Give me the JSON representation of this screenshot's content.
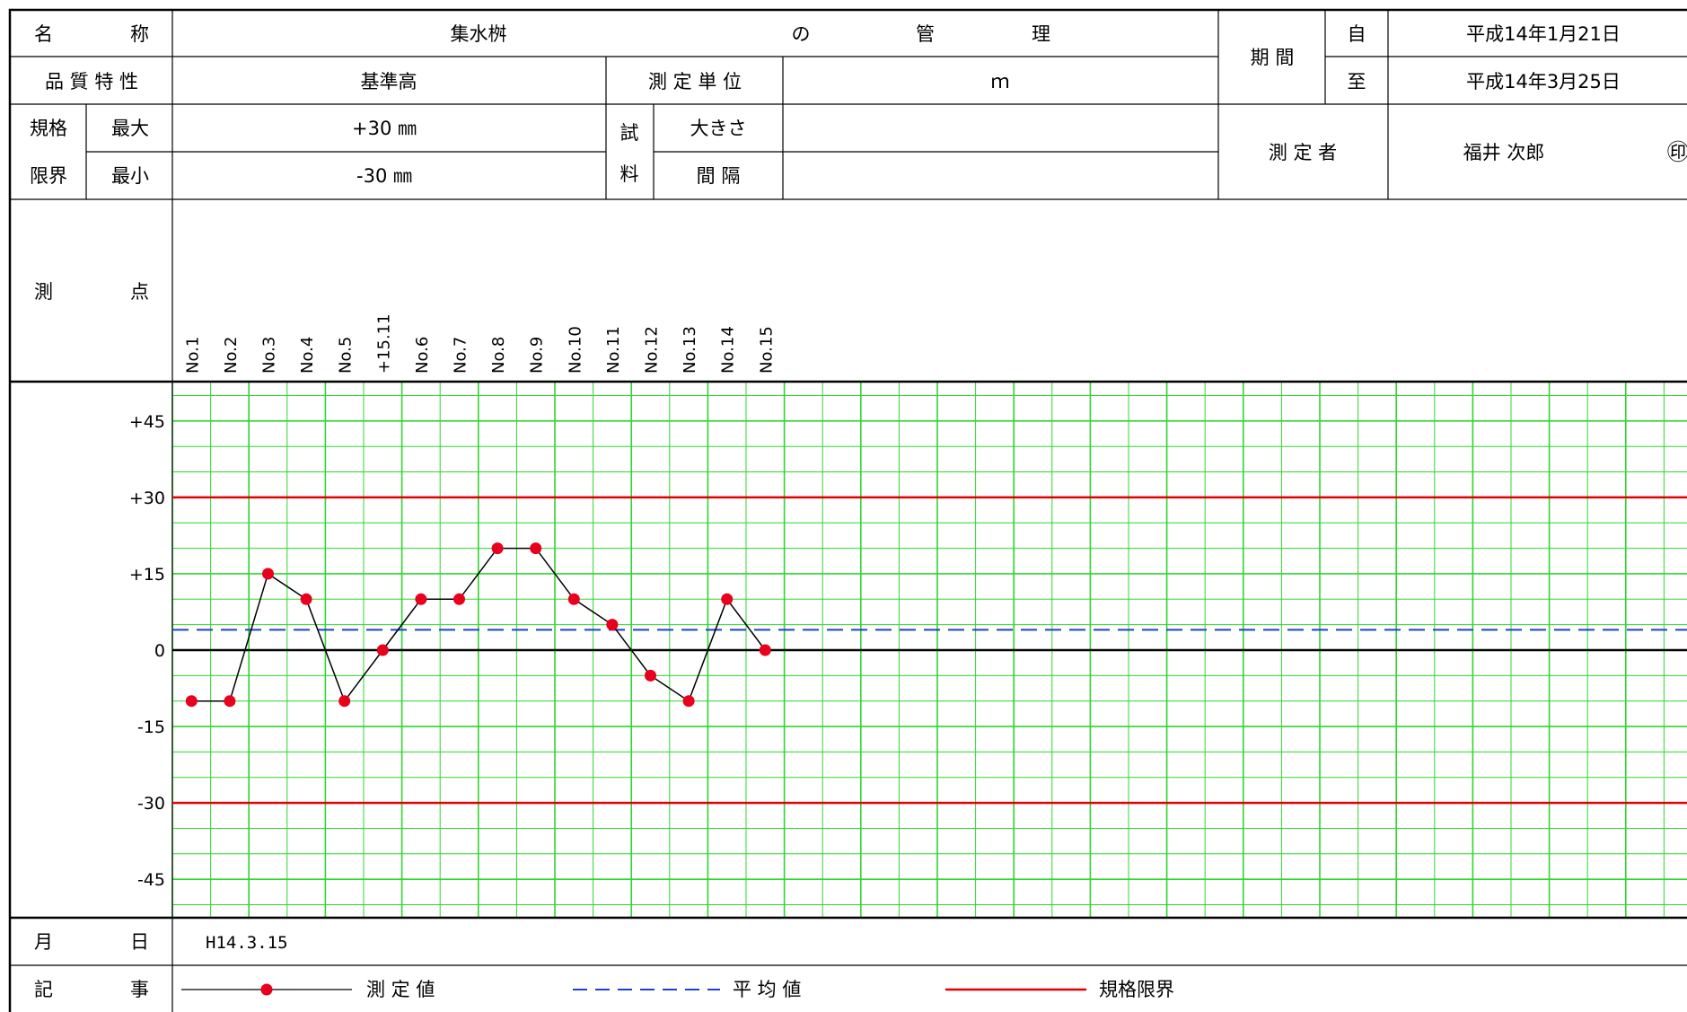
{
  "header": {
    "name_label": "名 称",
    "name_value": "集水桝",
    "no_label": "の",
    "kanri_label": "管 理",
    "period_label": "期 間",
    "from_label": "自",
    "to_label": "至",
    "from_date": "平成14年1月21日",
    "to_date": "平成14年3月25日",
    "quality_label": "品 質 特 性",
    "quality_value": "基準高",
    "unit_label": "測 定 単 位",
    "unit_value": "ｍ",
    "limit_label_top": "規格",
    "limit_label_bottom": "限界",
    "max_label": "最大",
    "min_label": "最小",
    "max_value": "+30 ㎜",
    "min_value": "-30 ㎜",
    "sample_label_top": "試",
    "sample_label_bottom": "料",
    "size_label": "大きさ",
    "interval_label": "間 隔",
    "measurer_label": "測 定 者",
    "measurer_name": "福井 次郎",
    "seal_mark": "㊞"
  },
  "points_label": "測 点",
  "footer": {
    "date_label": "月 日",
    "date_value": "H14.3.15",
    "notes_label": "記 事",
    "legend_measured": "測 定 値",
    "legend_average": "平 均 値",
    "legend_limit": "規格限界"
  },
  "chart_data": {
    "type": "line",
    "x": [
      "No.1",
      "No.2",
      "No.3",
      "No.4",
      "No.5",
      "+15.11",
      "No.6",
      "No.7",
      "No.8",
      "No.9",
      "No.10",
      "No.11",
      "No.12",
      "No.13",
      "No.14",
      "No.15"
    ],
    "series": [
      {
        "name": "測 定 値",
        "values": [
          -10,
          -10,
          15,
          10,
          -10,
          0,
          10,
          10,
          20,
          20,
          10,
          5,
          -5,
          -10,
          10,
          0
        ]
      }
    ],
    "average": 4,
    "upper_limit": 30,
    "lower_limit": -30,
    "y_ticks": [
      "+45",
      "+30",
      "+15",
      "0",
      "-15",
      "-30",
      "-45"
    ],
    "ylim": [
      -52.5,
      52.5
    ],
    "colors": {
      "measured_marker": "#e8001c",
      "measured_line": "#000000",
      "average": "#1f3fd6",
      "limit": "#e00000",
      "grid": "#2fd62f"
    }
  }
}
